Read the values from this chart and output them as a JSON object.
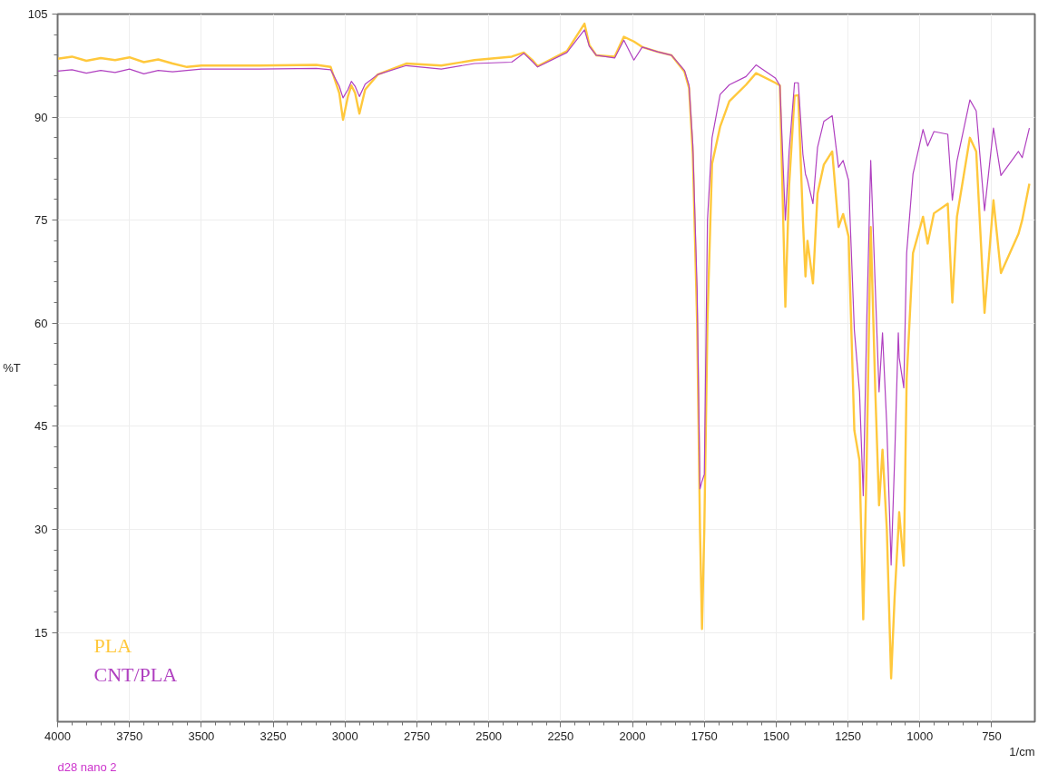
{
  "chart_data": {
    "type": "line",
    "xlabel": "1/cm",
    "ylabel": "%T",
    "x": [
      4000,
      3950,
      3900,
      3850,
      3800,
      3750,
      3700,
      3650,
      3600,
      3550,
      3500,
      3300,
      3100,
      3050,
      3020,
      3007,
      2990,
      2978,
      2965,
      2950,
      2930,
      2886,
      2787,
      2665,
      2550,
      2420,
      2378,
      2346,
      2330,
      2228,
      2167,
      2150,
      2126,
      2062,
      2030,
      1995,
      1966,
      1912,
      1864,
      1819,
      1803,
      1790,
      1775,
      1765,
      1758,
      1750,
      1739,
      1723,
      1695,
      1663,
      1605,
      1570,
      1503,
      1487,
      1468,
      1455,
      1436,
      1423,
      1407,
      1398,
      1391,
      1372,
      1356,
      1334,
      1305,
      1283,
      1267,
      1248,
      1228,
      1210,
      1197,
      1185,
      1171,
      1155,
      1142,
      1130,
      1115,
      1100,
      1088,
      1075,
      1072,
      1056,
      1046,
      1024,
      989,
      973,
      951,
      903,
      887,
      871,
      826,
      804,
      775,
      744,
      718,
      657,
      644,
      619
    ],
    "series": [
      {
        "name": "PLA",
        "color": "#ffc83c",
        "values": [
          98.5,
          98.8,
          98.2,
          98.6,
          98.3,
          98.7,
          98.0,
          98.4,
          97.8,
          97.3,
          97.5,
          97.5,
          97.6,
          97.3,
          93.5,
          89.6,
          93,
          94.6,
          93.5,
          90.5,
          94,
          96.2,
          97.8,
          97.5,
          98.3,
          98.8,
          99.4,
          98.2,
          97.4,
          99.6,
          103.6,
          100.5,
          99,
          98.8,
          101.7,
          101,
          100.2,
          99.5,
          99,
          96.6,
          94.2,
          84.6,
          60,
          30,
          15.5,
          30,
          60.5,
          83.2,
          88.6,
          92.3,
          94.7,
          96.4,
          95,
          94.6,
          62.4,
          80,
          93.1,
          93.2,
          75,
          66.8,
          72,
          65.8,
          78.9,
          83.1,
          85,
          74,
          75.9,
          72.6,
          44.4,
          40,
          16.9,
          40,
          74,
          50,
          33.5,
          41.6,
          30,
          8.3,
          20,
          30,
          32.5,
          24.7,
          51.9,
          70.2,
          75.5,
          71.6,
          76,
          77.4,
          63,
          75.5,
          87,
          85,
          61.5,
          77.9,
          67.3,
          73,
          75,
          80.3
        ]
      },
      {
        "name": "CNT/PLA",
        "color": "#b040c0",
        "values": [
          96.7,
          96.9,
          96.4,
          96.8,
          96.5,
          97.0,
          96.3,
          96.8,
          96.6,
          96.8,
          97.0,
          97.0,
          97.1,
          96.9,
          94.5,
          92.8,
          94,
          95.2,
          94.5,
          93,
          94.8,
          96.2,
          97.5,
          97.0,
          97.8,
          98.0,
          99.3,
          98.0,
          97.3,
          99.4,
          102.7,
          100.3,
          99,
          98.6,
          101.2,
          98.3,
          100.2,
          99.5,
          99,
          96.8,
          94.6,
          86,
          65,
          35.9,
          37,
          38,
          75,
          87,
          93.3,
          94.7,
          95.9,
          97.6,
          95.7,
          94.6,
          75,
          85,
          95,
          95,
          84.6,
          81.7,
          80.8,
          77.4,
          85.6,
          89.4,
          90.2,
          82.7,
          83.7,
          80.8,
          59,
          50,
          34.9,
          60,
          83.7,
          65,
          50,
          58.6,
          45,
          24.8,
          40,
          58.6,
          55,
          50.6,
          70.2,
          81.7,
          88.2,
          85.8,
          87.9,
          87.5,
          77.9,
          83.6,
          92.5,
          90.9,
          76.4,
          88.4,
          81.5,
          85,
          84.1,
          88.4
        ]
      }
    ],
    "xlim": [
      4000,
      600
    ],
    "ylim": [
      2,
      105
    ],
    "xticks": [
      4000,
      3750,
      3500,
      3250,
      3000,
      2750,
      2500,
      2250,
      2000,
      1750,
      1500,
      1250,
      1000,
      750
    ],
    "yticks": [
      15,
      30,
      45,
      60,
      75,
      90,
      105
    ],
    "grid": true,
    "legend": "bottom left",
    "marker": "none",
    "line_style": "solid",
    "annotations": [
      "d28 nano 2"
    ]
  }
}
